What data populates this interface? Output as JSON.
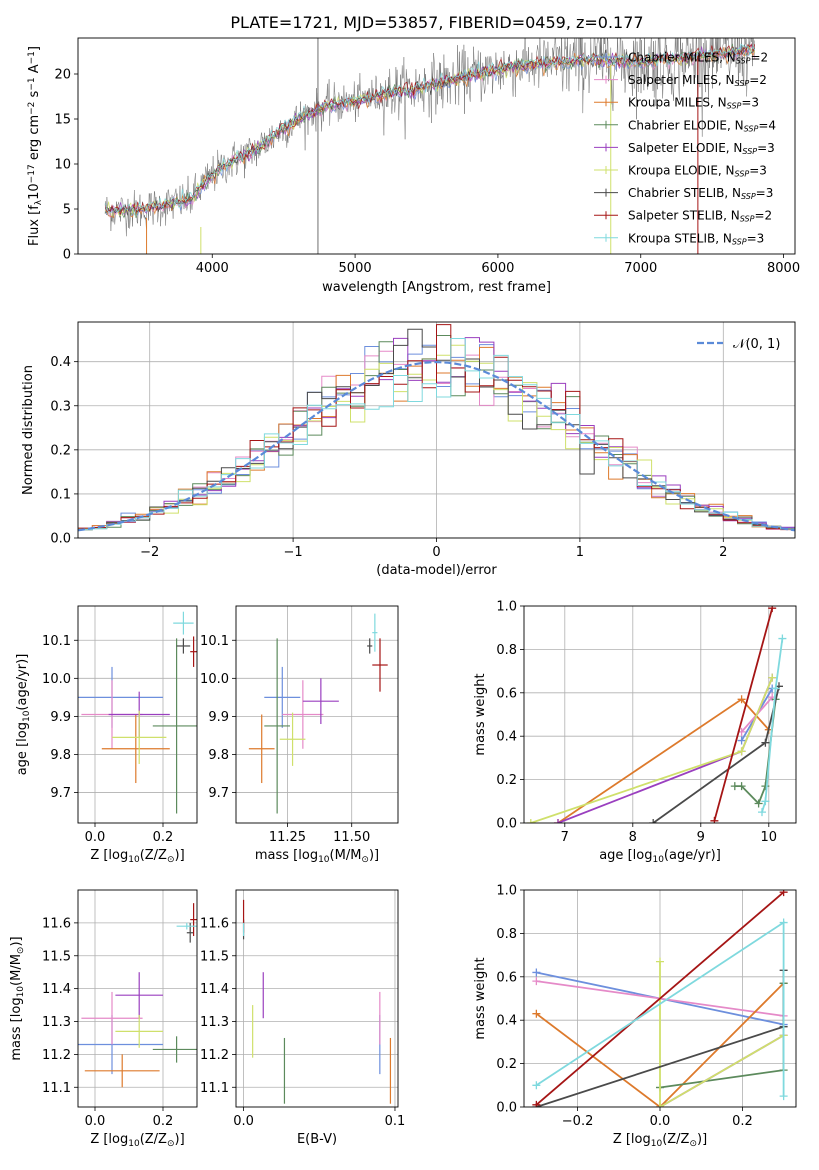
{
  "figure_title": "PLATE=1721, MJD=53857, FIBERID=0459, z=0.177",
  "model_colors": [
    "#6d8fdd",
    "#e58ac8",
    "#dd7a2c",
    "#5c8a5c",
    "#9a3fbf",
    "#cfe06b",
    "#4a4a4a",
    "#a51515",
    "#7fd9de"
  ],
  "chart_data": [
    {
      "id": "spectrum",
      "type": "line",
      "xlabel": "wavelength [Angstrom, rest frame]",
      "ylabel": "Flux [f$_\\lambda$10$^{-17}$ erg cm$^{-2}$ s$^{-1}$ A$^{-1}$]",
      "ylabel_parts": {
        "main": "Flux [f",
        "sub": "λ",
        "mid1": "10",
        "sup1": "−17",
        "mid2": " erg cm",
        "sup2": "−2",
        "mid3": " s",
        "sup3": "−1",
        "mid4": " A",
        "sup4": "−1",
        "end": "]"
      },
      "xlim": [
        3060,
        8080
      ],
      "ylim": [
        0,
        24
      ],
      "xticks": [
        4000,
        5000,
        6000,
        7000,
        8000
      ],
      "yticks": [
        0,
        5,
        10,
        15,
        20
      ],
      "grid": false,
      "legend_position": "top-right",
      "legend": [
        {
          "prefix": "Chabrier MILES, N",
          "sub": "SSP",
          "suffix": "=2"
        },
        {
          "prefix": "Salpeter MILES, N",
          "sub": "SSP",
          "suffix": "=2"
        },
        {
          "prefix": "Kroupa MILES, N",
          "sub": "SSP",
          "suffix": "=3"
        },
        {
          "prefix": "Chabrier ELODIE, N",
          "sub": "SSP",
          "suffix": "=4"
        },
        {
          "prefix": "Salpeter ELODIE, N",
          "sub": "SSP",
          "suffix": "=3"
        },
        {
          "prefix": "Kroupa ELODIE, N",
          "sub": "SSP",
          "suffix": "=3"
        },
        {
          "prefix": "Chabrier STELIB, N",
          "sub": "SSP",
          "suffix": "=3"
        },
        {
          "prefix": "Salpeter STELIB, N",
          "sub": "SSP",
          "suffix": "=2"
        },
        {
          "prefix": "Kroupa STELIB, N",
          "sub": "SSP",
          "suffix": "=3"
        }
      ],
      "continuum_knots": [
        [
          3250,
          4.8
        ],
        [
          3500,
          4.9
        ],
        [
          3700,
          5.5
        ],
        [
          3850,
          6.0
        ],
        [
          3950,
          8.0
        ],
        [
          4100,
          10.0
        ],
        [
          4300,
          11.5
        ],
        [
          4500,
          14.0
        ],
        [
          4700,
          15.8
        ],
        [
          4850,
          16.6
        ],
        [
          5000,
          16.9
        ],
        [
          5200,
          17.8
        ],
        [
          5400,
          18.3
        ],
        [
          5600,
          19.0
        ],
        [
          5800,
          19.8
        ],
        [
          6000,
          20.5
        ],
        [
          6200,
          21.0
        ],
        [
          6400,
          21.3
        ],
        [
          6600,
          21.6
        ],
        [
          6800,
          21.6
        ],
        [
          7000,
          21.3
        ],
        [
          7200,
          21.6
        ],
        [
          7400,
          22.0
        ],
        [
          7600,
          22.3
        ],
        [
          7800,
          22.6
        ]
      ],
      "spikes": [
        [
          4740,
          0,
          24
        ],
        [
          3540,
          0,
          4
        ],
        [
          3920,
          0,
          3
        ],
        [
          6790,
          0,
          21
        ],
        [
          7400,
          0,
          22
        ]
      ]
    },
    {
      "id": "residuals",
      "type": "histogram",
      "xlabel": "(data-model)/error",
      "ylabel": "Normed distribution",
      "xlim": [
        -2.5,
        2.5
      ],
      "ylim": [
        0,
        0.49
      ],
      "xticks": [
        -2,
        -1,
        0,
        1,
        2
      ],
      "xtick_labels": [
        "−2",
        "−1",
        "0",
        "1",
        "2"
      ],
      "yticks": [
        0.0,
        0.1,
        0.2,
        0.3,
        0.4
      ],
      "ytick_labels": [
        "0.0",
        "0.1",
        "0.2",
        "0.3",
        "0.4"
      ],
      "grid": true,
      "legend_position": "top-right",
      "legend_label": "𝒩(0, 1)",
      "reference_curve": "normal(0,1)",
      "bin_width": 0.1
    },
    {
      "id": "age_vs_Z",
      "type": "scatter",
      "xlabel": "Z [log$_{10}$(Z/Z$_\\odot$)]",
      "ylabel": "age  [log$_{10}$(age/yr)]",
      "xlim": [
        -0.05,
        0.3
      ],
      "ylim": [
        9.62,
        10.19
      ],
      "xticks": [
        0.0,
        0.2
      ],
      "xtick_labels": [
        "0.0",
        "0.2"
      ],
      "yticks": [
        9.7,
        9.8,
        9.9,
        10.0,
        10.1
      ],
      "ytick_labels": [
        "9.7",
        "9.8",
        "9.9",
        "10.0",
        "10.1"
      ],
      "grid": true,
      "points": [
        {
          "x": 0.05,
          "y": 9.95,
          "xerr": 0.15,
          "yerr": 0.08,
          "c": 0
        },
        {
          "x": 0.05,
          "y": 9.905,
          "xerr": 0.09,
          "yerr": 0.09,
          "c": 1
        },
        {
          "x": 0.12,
          "y": 9.815,
          "xerr": 0.1,
          "yerr": 0.09,
          "c": 2
        },
        {
          "x": 0.24,
          "y": 9.875,
          "xerr": 0.07,
          "yerr": 0.23,
          "c": 3
        },
        {
          "x": 0.13,
          "y": 9.905,
          "xerr": 0.09,
          "yerr": 0.06,
          "c": 4
        },
        {
          "x": 0.13,
          "y": 9.845,
          "xerr": 0.08,
          "yerr": 0.07,
          "c": 5
        },
        {
          "x": 0.26,
          "y": 10.085,
          "xerr": 0.02,
          "yerr": 0.02,
          "c": 6
        },
        {
          "x": 0.29,
          "y": 10.07,
          "xerr": 0.01,
          "yerr": 0.04,
          "c": 7
        },
        {
          "x": 0.26,
          "y": 10.145,
          "xerr": 0.03,
          "yerr": 0.03,
          "c": 8
        }
      ]
    },
    {
      "id": "age_vs_mass",
      "type": "scatter",
      "xlabel": "mass [log$_{10}$(M/M$_\\odot$)]",
      "ylabel": "",
      "xlim": [
        11.05,
        11.68
      ],
      "ylim": [
        9.62,
        10.19
      ],
      "xticks": [
        11.25,
        11.5
      ],
      "xtick_labels": [
        "11.25",
        "11.50"
      ],
      "yticks": [
        9.7,
        9.8,
        9.9,
        10.0,
        10.1
      ],
      "ytick_labels": [
        "9.7",
        "9.8",
        "9.9",
        "10.0",
        "10.1"
      ],
      "grid": true,
      "points": [
        {
          "x": 11.23,
          "y": 9.95,
          "xerr": 0.07,
          "yerr": 0.08,
          "c": 0
        },
        {
          "x": 11.31,
          "y": 9.905,
          "xerr": 0.08,
          "yerr": 0.09,
          "c": 1
        },
        {
          "x": 11.15,
          "y": 9.815,
          "xerr": 0.05,
          "yerr": 0.09,
          "c": 2
        },
        {
          "x": 11.21,
          "y": 9.875,
          "xerr": 0.05,
          "yerr": 0.23,
          "c": 3
        },
        {
          "x": 11.38,
          "y": 9.94,
          "xerr": 0.07,
          "yerr": 0.06,
          "c": 4
        },
        {
          "x": 11.27,
          "y": 9.84,
          "xerr": 0.05,
          "yerr": 0.07,
          "c": 5
        },
        {
          "x": 11.57,
          "y": 10.085,
          "xerr": 0.01,
          "yerr": 0.02,
          "c": 6
        },
        {
          "x": 11.61,
          "y": 10.035,
          "xerr": 0.03,
          "yerr": 0.07,
          "c": 7
        },
        {
          "x": 11.59,
          "y": 10.12,
          "xerr": 0.01,
          "yerr": 0.05,
          "c": 8
        }
      ]
    },
    {
      "id": "weight_vs_age",
      "type": "line",
      "xlabel": "age  [log$_{10}$(age/yr)]",
      "ylabel": "mass weight",
      "xlim": [
        6.4,
        10.4
      ],
      "ylim": [
        0.0,
        1.0
      ],
      "xticks": [
        7,
        8,
        9,
        10
      ],
      "xtick_labels": [
        "7",
        "8",
        "9",
        "10"
      ],
      "yticks": [
        0.0,
        0.2,
        0.4,
        0.6,
        0.8,
        1.0
      ],
      "ytick_labels": [
        "0.0",
        "0.2",
        "0.4",
        "0.6",
        "0.8",
        "1.0"
      ],
      "grid": true,
      "series": [
        {
          "c": 0,
          "x": [
            9.6,
            10.05
          ],
          "y": [
            0.38,
            0.62
          ]
        },
        {
          "c": 1,
          "x": [
            9.6,
            10.05
          ],
          "y": [
            0.42,
            0.58
          ]
        },
        {
          "c": 2,
          "x": [
            6.9,
            9.6,
            10.0
          ],
          "y": [
            0.0,
            0.57,
            0.43
          ]
        },
        {
          "c": 3,
          "x": [
            9.5,
            9.6,
            9.85,
            9.95,
            10.1
          ],
          "y": [
            0.17,
            0.17,
            0.09,
            0.17,
            0.57
          ]
        },
        {
          "c": 4,
          "x": [
            6.9,
            9.6,
            10.05
          ],
          "y": [
            0.0,
            0.33,
            0.67
          ]
        },
        {
          "c": 5,
          "x": [
            6.5,
            9.6,
            10.05
          ],
          "y": [
            0.0,
            0.33,
            0.67
          ]
        },
        {
          "c": 6,
          "x": [
            8.3,
            9.95,
            10.15
          ],
          "y": [
            0.0,
            0.37,
            0.63
          ]
        },
        {
          "c": 7,
          "x": [
            9.2,
            10.05
          ],
          "y": [
            0.01,
            0.99
          ]
        },
        {
          "c": 8,
          "x": [
            9.9,
            9.95,
            10.1,
            10.2
          ],
          "y": [
            0.05,
            0.1,
            0.62,
            0.85
          ]
        }
      ]
    },
    {
      "id": "mass_vs_Z",
      "type": "scatter",
      "xlabel": "Z [log$_{10}$(Z/Z$_\\odot$)]",
      "ylabel": "mass [log$_{10}$(M/M$_\\odot$)]",
      "xlim": [
        -0.05,
        0.3
      ],
      "ylim": [
        11.04,
        11.7
      ],
      "xticks": [
        0.0,
        0.2
      ],
      "xtick_labels": [
        "0.0",
        "0.2"
      ],
      "yticks": [
        11.1,
        11.2,
        11.3,
        11.4,
        11.5,
        11.6
      ],
      "ytick_labels": [
        "11.1",
        "11.2",
        "11.3",
        "11.4",
        "11.5",
        "11.6"
      ],
      "grid": true,
      "points": [
        {
          "x": 0.05,
          "y": 11.23,
          "xerr": 0.15,
          "yerr": 0.09,
          "c": 0
        },
        {
          "x": 0.05,
          "y": 11.31,
          "xerr": 0.09,
          "yerr": 0.08,
          "c": 1
        },
        {
          "x": 0.08,
          "y": 11.15,
          "xerr": 0.11,
          "yerr": 0.05,
          "c": 2
        },
        {
          "x": 0.24,
          "y": 11.215,
          "xerr": 0.07,
          "yerr": 0.04,
          "c": 3
        },
        {
          "x": 0.13,
          "y": 11.38,
          "xerr": 0.07,
          "yerr": 0.07,
          "c": 4
        },
        {
          "x": 0.13,
          "y": 11.27,
          "xerr": 0.07,
          "yerr": 0.05,
          "c": 5
        },
        {
          "x": 0.28,
          "y": 11.57,
          "xerr": 0.01,
          "yerr": 0.03,
          "c": 6
        },
        {
          "x": 0.29,
          "y": 11.61,
          "xerr": 0.01,
          "yerr": 0.05,
          "c": 7
        },
        {
          "x": 0.27,
          "y": 11.59,
          "xerr": 0.03,
          "yerr": 0.01,
          "c": 8
        }
      ]
    },
    {
      "id": "mass_vs_ebv",
      "type": "scatter",
      "xlabel": "E(B-V)",
      "ylabel": "",
      "xlim": [
        -0.005,
        0.102
      ],
      "ylim": [
        11.04,
        11.7
      ],
      "xticks": [
        0.0,
        0.1
      ],
      "xtick_labels": [
        "0.0",
        "0.1"
      ],
      "yticks": [
        11.1,
        11.2,
        11.3,
        11.4,
        11.5,
        11.6
      ],
      "ytick_labels": [
        "11.1",
        "11.2",
        "11.3",
        "11.4",
        "11.5",
        "11.6"
      ],
      "grid": true,
      "points": [
        {
          "x": 0.09,
          "y": 11.23,
          "xerr": 0,
          "yerr": 0.09,
          "c": 0
        },
        {
          "x": 0.09,
          "y": 11.31,
          "xerr": 0,
          "yerr": 0.08,
          "c": 1
        },
        {
          "x": 0.097,
          "y": 11.15,
          "xerr": 0,
          "yerr": 0.1,
          "c": 2
        },
        {
          "x": 0.027,
          "y": 11.15,
          "xerr": 0,
          "yerr": 0.1,
          "c": 3
        },
        {
          "x": 0.013,
          "y": 11.38,
          "xerr": 0,
          "yerr": 0.07,
          "c": 4
        },
        {
          "x": 0.006,
          "y": 11.27,
          "xerr": 0,
          "yerr": 0.08,
          "c": 5
        },
        {
          "x": 0.0,
          "y": 11.58,
          "xerr": 0,
          "yerr": 0.03,
          "c": 6
        },
        {
          "x": 0.0,
          "y": 11.62,
          "xerr": 0,
          "yerr": 0.05,
          "c": 7
        },
        {
          "x": 0.0,
          "y": 11.58,
          "xerr": 0,
          "yerr": 0.02,
          "c": 8
        }
      ]
    },
    {
      "id": "weight_vs_Z",
      "type": "line",
      "xlabel": "Z [log$_{10}$(Z/Z$_\\odot$)]",
      "ylabel": "mass weight",
      "xlim": [
        -0.33,
        0.33
      ],
      "ylim": [
        0.0,
        1.0
      ],
      "xticks": [
        -0.2,
        0.0,
        0.2
      ],
      "xtick_labels": [
        "−0.2",
        "0.0",
        "0.2"
      ],
      "yticks": [
        0.0,
        0.2,
        0.4,
        0.6,
        0.8,
        1.0
      ],
      "ytick_labels": [
        "0.0",
        "0.2",
        "0.4",
        "0.6",
        "0.8",
        "1.0"
      ],
      "grid": true,
      "series": [
        {
          "c": 0,
          "x": [
            -0.3,
            0.3
          ],
          "y": [
            0.62,
            0.38
          ]
        },
        {
          "c": 1,
          "x": [
            -0.3,
            0.3
          ],
          "y": [
            0.58,
            0.42
          ]
        },
        {
          "c": 2,
          "x": [
            -0.3,
            0.0,
            0.3
          ],
          "y": [
            0.43,
            0.0,
            0.57
          ]
        },
        {
          "c": 3,
          "x": [
            0.0,
            0.0,
            0.3,
            0.3
          ],
          "y": [
            0.09,
            0.09,
            0.17,
            0.57
          ]
        },
        {
          "c": 4,
          "x": [
            0.0,
            0.3
          ],
          "y": [
            0.0,
            0.33
          ]
        },
        {
          "c": 5,
          "x": [
            0.0,
            0.0,
            0.3
          ],
          "y": [
            0.67,
            0.0,
            0.33
          ]
        },
        {
          "c": 6,
          "x": [
            -0.3,
            0.3,
            0.3
          ],
          "y": [
            0.0,
            0.37,
            0.63
          ]
        },
        {
          "c": 7,
          "x": [
            -0.3,
            0.3
          ],
          "y": [
            0.01,
            0.99
          ]
        },
        {
          "c": 8,
          "x": [
            -0.3,
            0.3,
            0.3
          ],
          "y": [
            0.1,
            0.85,
            0.05
          ]
        }
      ]
    }
  ]
}
